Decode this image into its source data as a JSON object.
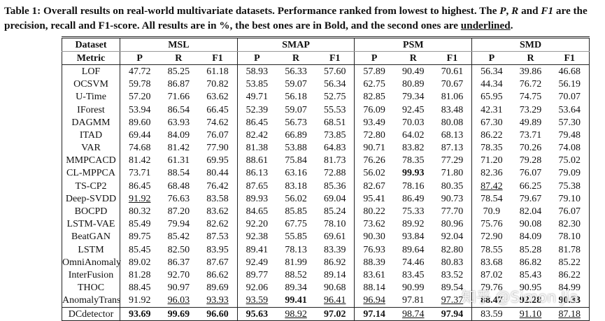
{
  "caption": {
    "parts": [
      "Table 1: Overall results on real-world multivariate datasets. Performance ranked from lowest to highest. The ",
      "P",
      ", ",
      "R",
      " and ",
      "F1",
      " are the precision, recall and F1-score. All results are in %, the best ones are in Bold, and the second ones are ",
      "underlined",
      "."
    ]
  },
  "table": {
    "dataset_label": "Dataset",
    "metric_label": "Metric",
    "groups": [
      "MSL",
      "SMAP",
      "PSM",
      "SMD"
    ],
    "metrics": [
      "P",
      "R",
      "F1"
    ],
    "rows": [
      {
        "name": "LOF",
        "values": [
          "47.72",
          "85.25",
          "61.18",
          "58.93",
          "56.33",
          "57.60",
          "57.89",
          "90.49",
          "70.61",
          "56.34",
          "39.86",
          "46.68"
        ]
      },
      {
        "name": "OCSVM",
        "values": [
          "59.78",
          "86.87",
          "70.82",
          "53.85",
          "59.07",
          "56.34",
          "62.75",
          "80.89",
          "70.67",
          "44.34",
          "76.72",
          "56.19"
        ]
      },
      {
        "name": "U-Time",
        "values": [
          "57.20",
          "71.66",
          "63.62",
          "49.71",
          "56.18",
          "52.75",
          "82.85",
          "79.34",
          "81.06",
          "65.95",
          "74.75",
          "70.07"
        ]
      },
      {
        "name": "IForest",
        "values": [
          "53.94",
          "86.54",
          "66.45",
          "52.39",
          "59.07",
          "55.53",
          "76.09",
          "92.45",
          "83.48",
          "42.31",
          "73.29",
          "53.64"
        ]
      },
      {
        "name": "DAGMM",
        "values": [
          "89.60",
          "63.93",
          "74.62",
          "86.45",
          "56.73",
          "68.51",
          "93.49",
          "70.03",
          "80.08",
          "67.30",
          "49.89",
          "57.30"
        ]
      },
      {
        "name": "ITAD",
        "values": [
          "69.44",
          "84.09",
          "76.07",
          "82.42",
          "66.89",
          "73.85",
          "72.80",
          "64.02",
          "68.13",
          "86.22",
          "73.71",
          "79.48"
        ]
      },
      {
        "name": "VAR",
        "values": [
          "74.68",
          "81.42",
          "77.90",
          "81.38",
          "53.88",
          "64.83",
          "90.71",
          "83.82",
          "87.13",
          "78.35",
          "70.26",
          "74.08"
        ]
      },
      {
        "name": "MMPCACD",
        "values": [
          "81.42",
          "61.31",
          "69.95",
          "88.61",
          "75.84",
          "81.73",
          "76.26",
          "78.35",
          "77.29",
          "71.20",
          "79.28",
          "75.02"
        ]
      },
      {
        "name": "CL-MPPCA",
        "values": [
          "73.71",
          "88.54",
          "80.44",
          "86.13",
          "63.16",
          "72.88",
          "56.02",
          "99.93",
          "71.80",
          "82.36",
          "76.07",
          "79.09"
        ]
      },
      {
        "name": "TS-CP2",
        "values": [
          "86.45",
          "68.48",
          "76.42",
          "87.65",
          "83.18",
          "85.36",
          "82.67",
          "78.16",
          "80.35",
          "87.42",
          "66.25",
          "75.38"
        ]
      },
      {
        "name": "Deep-SVDD",
        "values": [
          "91.92",
          "76.63",
          "83.58",
          "89.93",
          "56.02",
          "69.04",
          "95.41",
          "86.49",
          "90.73",
          "78.54",
          "79.67",
          "79.10"
        ]
      },
      {
        "name": "BOCPD",
        "values": [
          "80.32",
          "87.20",
          "83.62",
          "84.65",
          "85.85",
          "85.24",
          "80.22",
          "75.33",
          "77.70",
          "70.9",
          "82.04",
          "76.07"
        ]
      },
      {
        "name": "LSTM-VAE",
        "values": [
          "85.49",
          "79.94",
          "82.62",
          "92.20",
          "67.75",
          "78.10",
          "73.62",
          "89.92",
          "80.96",
          "75.76",
          "90.08",
          "82.30"
        ]
      },
      {
        "name": "BeatGAN",
        "values": [
          "89.75",
          "85.42",
          "87.53",
          "92.38",
          "55.85",
          "69.61",
          "90.30",
          "93.84",
          "92.04",
          "72.90",
          "84.09",
          "78.10"
        ]
      },
      {
        "name": "LSTM",
        "values": [
          "85.45",
          "82.50",
          "83.95",
          "89.41",
          "78.13",
          "83.39",
          "76.93",
          "89.64",
          "82.80",
          "78.55",
          "85.28",
          "81.78"
        ]
      },
      {
        "name": "OmniAnomaly",
        "values": [
          "89.02",
          "86.37",
          "87.67",
          "92.49",
          "81.99",
          "86.92",
          "88.39",
          "74.46",
          "80.83",
          "83.68",
          "86.82",
          "85.22"
        ]
      },
      {
        "name": "InterFusion",
        "values": [
          "81.28",
          "92.70",
          "86.62",
          "89.77",
          "88.52",
          "89.14",
          "83.61",
          "83.45",
          "83.52",
          "87.02",
          "85.43",
          "86.22"
        ]
      },
      {
        "name": "THOC",
        "values": [
          "88.45",
          "90.97",
          "89.69",
          "92.06",
          "89.34",
          "90.68",
          "88.14",
          "90.99",
          "89.54",
          "79.76",
          "90.95",
          "84.99"
        ]
      },
      {
        "name": "AnomalyTrans",
        "values": [
          "91.92",
          "96.03",
          "93.93",
          "93.59",
          "99.41",
          "96.41",
          "96.94",
          "97.81",
          "97.37",
          "88.47",
          "92.28",
          "90.33"
        ]
      },
      {
        "name": "DCdetector",
        "values": [
          "93.69",
          "99.69",
          "96.60",
          "95.63",
          "98.92",
          "97.02",
          "97.14",
          "98.74",
          "97.94",
          "83.59",
          "91.10",
          "87.18"
        ]
      }
    ],
    "bold": [
      [
        8,
        7
      ],
      [
        18,
        4
      ],
      [
        18,
        9
      ],
      [
        18,
        10
      ],
      [
        18,
        11
      ],
      [
        19,
        0
      ],
      [
        19,
        1
      ],
      [
        19,
        2
      ],
      [
        19,
        3
      ],
      [
        19,
        5
      ],
      [
        19,
        6
      ],
      [
        19,
        8
      ]
    ],
    "underline": [
      [
        10,
        0
      ],
      [
        9,
        9
      ],
      [
        18,
        1
      ],
      [
        18,
        2
      ],
      [
        18,
        3
      ],
      [
        18,
        5
      ],
      [
        18,
        6
      ],
      [
        18,
        8
      ],
      [
        19,
        4
      ],
      [
        19,
        7
      ],
      [
        19,
        10
      ],
      [
        19,
        11
      ]
    ]
  },
  "watermark": "知乎 @Simon Jia"
}
